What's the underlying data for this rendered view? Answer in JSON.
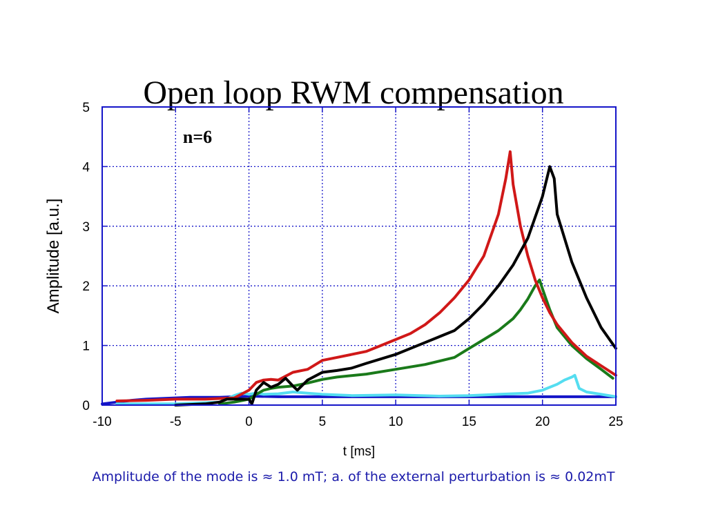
{
  "slide": {
    "title": "Open loop RWM compensation",
    "caption": "Amplitude of the mode is ≈ 1.0 mT; a. of the external perturbation is ≈ 0.02mT"
  },
  "chart_data": {
    "type": "line",
    "title": "Open loop RWM compensation",
    "xlabel": "t [ms]",
    "ylabel": "Amplitude [a.u.]",
    "xlim": [
      -10,
      25
    ],
    "ylim": [
      0,
      5
    ],
    "xticks": [
      -10,
      -5,
      0,
      5,
      10,
      15,
      20,
      25
    ],
    "yticks": [
      0,
      1,
      2,
      3,
      4,
      5
    ],
    "grid": true,
    "legend": "none",
    "annotation": {
      "text": "n=6",
      "x": -4.5,
      "y": 4.4
    },
    "series": [
      {
        "color": "#1414c8",
        "x": [
          -10,
          -9,
          -8,
          -7,
          -6,
          -5,
          -4,
          -3,
          -2,
          -1,
          0,
          2,
          5,
          10,
          15,
          20,
          25
        ],
        "y": [
          0.02,
          0.05,
          0.08,
          0.1,
          0.11,
          0.12,
          0.13,
          0.13,
          0.13,
          0.14,
          0.15,
          0.14,
          0.14,
          0.14,
          0.14,
          0.14,
          0.14
        ]
      },
      {
        "color": "#55ddf0",
        "x": [
          -9,
          -5,
          -2,
          -1,
          -0.5,
          0,
          0.5,
          1,
          2,
          3,
          4,
          5,
          7,
          10,
          13,
          15,
          17,
          19,
          20,
          21,
          21.5,
          22,
          22.2,
          22.5,
          23,
          24,
          25
        ],
        "y": [
          0.02,
          0.02,
          0.05,
          0.16,
          0.2,
          0.18,
          0.2,
          0.18,
          0.19,
          0.22,
          0.2,
          0.18,
          0.16,
          0.17,
          0.15,
          0.16,
          0.18,
          0.2,
          0.25,
          0.35,
          0.42,
          0.47,
          0.5,
          0.28,
          0.22,
          0.18,
          0.14
        ]
      },
      {
        "color": "#1a7a1a",
        "x": [
          -2,
          -1,
          0,
          0.5,
          1,
          1.5,
          2,
          3,
          4,
          5,
          6,
          8,
          10,
          12,
          14,
          15,
          16,
          17,
          18,
          18.5,
          19,
          19.5,
          19.8,
          20,
          20.5,
          21,
          22,
          23,
          24,
          24.8
        ],
        "y": [
          0.02,
          0.05,
          0.1,
          0.18,
          0.25,
          0.28,
          0.3,
          0.32,
          0.37,
          0.43,
          0.47,
          0.52,
          0.6,
          0.68,
          0.8,
          0.95,
          1.1,
          1.25,
          1.45,
          1.6,
          1.78,
          2.0,
          2.1,
          1.95,
          1.6,
          1.3,
          1.0,
          0.78,
          0.6,
          0.45
        ]
      },
      {
        "color": "#d01818",
        "x": [
          -9,
          -7,
          -5,
          -3,
          -1,
          0,
          0.5,
          1,
          1.5,
          2,
          3,
          4,
          5,
          6,
          7,
          8,
          9,
          10,
          11,
          12,
          13,
          14,
          15,
          16,
          17,
          17.5,
          17.8,
          18,
          18.5,
          19,
          19.5,
          20,
          20.5,
          21,
          22,
          23,
          24,
          25
        ],
        "y": [
          0.07,
          0.08,
          0.1,
          0.1,
          0.12,
          0.25,
          0.38,
          0.42,
          0.43,
          0.42,
          0.55,
          0.6,
          0.75,
          0.8,
          0.85,
          0.9,
          1.0,
          1.1,
          1.2,
          1.35,
          1.55,
          1.8,
          2.1,
          2.5,
          3.2,
          3.8,
          4.25,
          3.7,
          3.0,
          2.5,
          2.1,
          1.8,
          1.55,
          1.35,
          1.05,
          0.82,
          0.66,
          0.5
        ]
      },
      {
        "color": "#000000",
        "x": [
          -5,
          -3,
          -2,
          -1.5,
          -1,
          0,
          0.2,
          0.5,
          1,
          1.5,
          2,
          2.5,
          3,
          3.3,
          4,
          5,
          6,
          7,
          8,
          10,
          12,
          14,
          15,
          16,
          17,
          18,
          19,
          20,
          20.5,
          20.8,
          21,
          22,
          23,
          24,
          25
        ],
        "y": [
          0.0,
          0.02,
          0.05,
          0.1,
          0.1,
          0.1,
          0.02,
          0.25,
          0.38,
          0.3,
          0.35,
          0.45,
          0.32,
          0.25,
          0.42,
          0.55,
          0.58,
          0.62,
          0.7,
          0.85,
          1.05,
          1.25,
          1.45,
          1.7,
          2.0,
          2.35,
          2.8,
          3.5,
          4.0,
          3.8,
          3.2,
          2.4,
          1.8,
          1.3,
          0.95
        ]
      }
    ]
  }
}
